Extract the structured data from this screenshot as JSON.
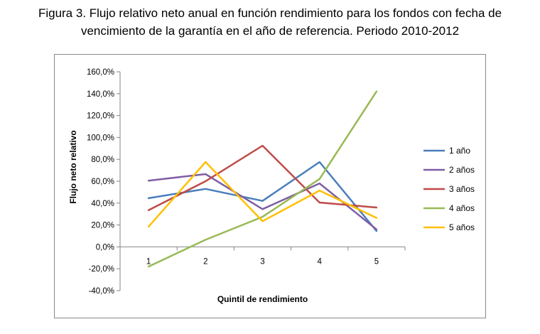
{
  "caption": {
    "line1": "Figura 3. Flujo relativo neto anual en función rendimiento para los fondos con fecha de",
    "line2": "vencimiento de la garantía en el año de referencia. Periodo 2010-2012"
  },
  "chart_data": {
    "type": "line",
    "title": "Figura 3. Flujo relativo neto anual en función rendimiento para los fondos con fecha de vencimiento de la garantía en el año de referencia. Periodo 2010-2012",
    "xlabel": "Quintil de rendimiento",
    "ylabel": "Flujo neto relativo",
    "categories": [
      "1",
      "2",
      "3",
      "4",
      "5"
    ],
    "ylim": [
      -40,
      160
    ],
    "ytick_step": 20,
    "ytick_labels": [
      "-40,0%",
      "-20,0%",
      "0,0%",
      "20,0%",
      "40,0%",
      "60,0%",
      "80,0%",
      "100,0%",
      "120,0%",
      "140,0%",
      "160,0%"
    ],
    "grid": false,
    "legend_position": "right",
    "series": [
      {
        "name": "1 año",
        "color": "#4a7ebb",
        "values": [
          44.5,
          53,
          42,
          77.5,
          14.5
        ]
      },
      {
        "name": "2 años",
        "color": "#7e5ea4",
        "values": [
          60.5,
          66.5,
          34.5,
          58,
          16
        ]
      },
      {
        "name": "3 años",
        "color": "#be4b48",
        "values": [
          33.5,
          60,
          92.5,
          40.5,
          36
        ]
      },
      {
        "name": "4 años",
        "color": "#98b954",
        "values": [
          -18,
          6.5,
          27.5,
          62,
          142
        ]
      },
      {
        "name": "5 años",
        "color": "#ffc000",
        "values": [
          18.5,
          77.5,
          23.5,
          51.5,
          26.5
        ]
      }
    ]
  }
}
